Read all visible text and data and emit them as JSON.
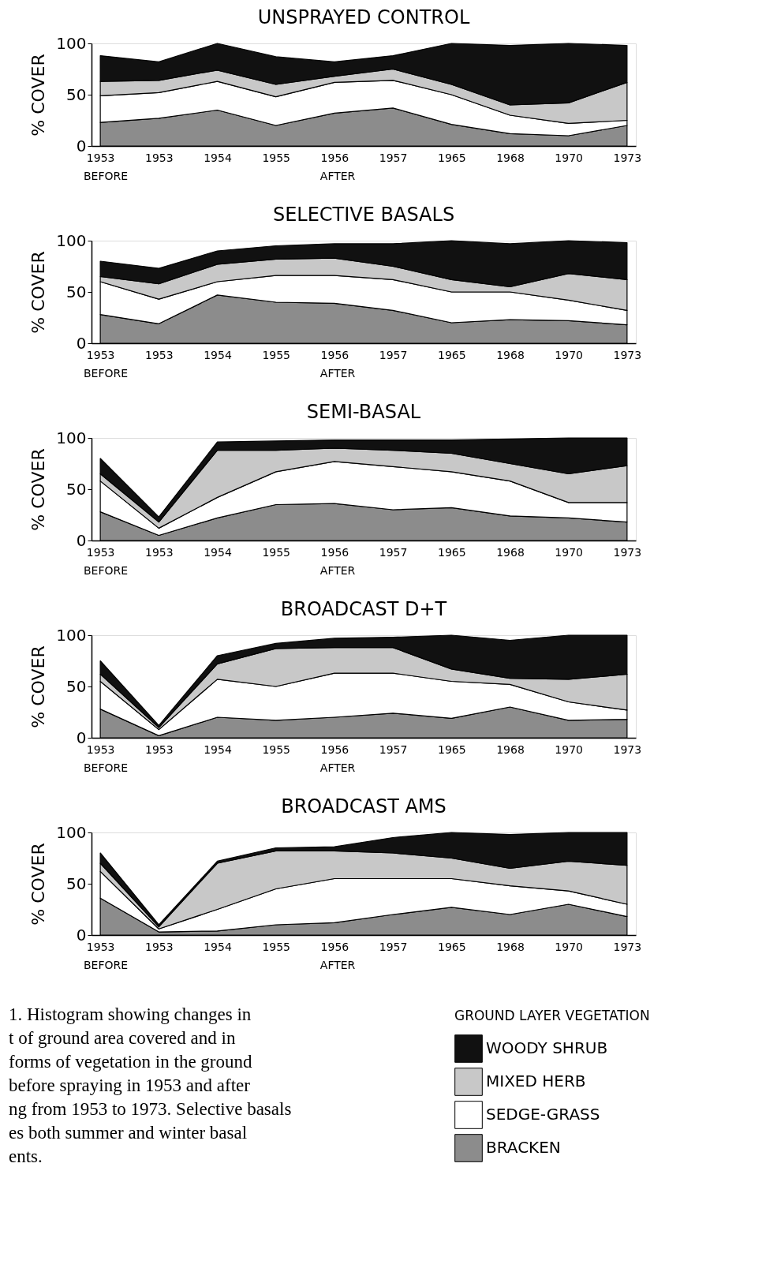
{
  "chart_data": [
    {
      "type": "area",
      "title": "UNSPRAYED CONTROL",
      "ylabel": "% COVER",
      "stacked": true,
      "ylim": [
        0,
        100
      ],
      "yticks": [
        0,
        50,
        100
      ],
      "categories": [
        "1953",
        "1953",
        "1954",
        "1955",
        "1956",
        "1957",
        "1965",
        "1968",
        "1970",
        "1973"
      ],
      "series": [
        {
          "color": "#8c8c8c",
          "values": [
            23,
            27,
            35,
            20,
            32,
            37,
            21,
            12,
            10,
            20
          ]
        },
        {
          "color": "#ffffff",
          "values": [
            26,
            25,
            28,
            28,
            30,
            27,
            29,
            18,
            12,
            5
          ]
        },
        {
          "color": "#c8c8c8",
          "values": [
            14,
            12,
            11,
            12,
            6,
            11,
            10,
            10,
            20,
            37
          ]
        },
        {
          "color": "#111111",
          "values": [
            25,
            18,
            26,
            27,
            14,
            13,
            40,
            58,
            58,
            36
          ]
        }
      ],
      "annotations": [
        "BEFORE",
        "AFTER"
      ]
    },
    {
      "type": "area",
      "title": "SELECTIVE BASALS",
      "ylabel": "% COVER",
      "stacked": true,
      "ylim": [
        0,
        100
      ],
      "yticks": [
        0,
        50,
        100
      ],
      "categories": [
        "1953",
        "1953",
        "1954",
        "1955",
        "1956",
        "1957",
        "1965",
        "1968",
        "1970",
        "1973"
      ],
      "series": [
        {
          "color": "#8c8c8c",
          "values": [
            28,
            19,
            47,
            40,
            39,
            32,
            20,
            23,
            22,
            18
          ]
        },
        {
          "color": "#ffffff",
          "values": [
            32,
            24,
            13,
            26,
            27,
            30,
            30,
            27,
            20,
            14
          ]
        },
        {
          "color": "#c8c8c8",
          "values": [
            5,
            15,
            17,
            16,
            17,
            13,
            12,
            5,
            26,
            30
          ]
        },
        {
          "color": "#111111",
          "values": [
            15,
            15,
            13,
            13,
            14,
            22,
            38,
            42,
            32,
            36
          ]
        }
      ],
      "annotations": [
        "BEFORE",
        "AFTER"
      ]
    },
    {
      "type": "area",
      "title": "SEMI-BASAL",
      "ylabel": "% COVER",
      "stacked": true,
      "ylim": [
        0,
        100
      ],
      "yticks": [
        0,
        50,
        100
      ],
      "categories": [
        "1953",
        "1953",
        "1954",
        "1955",
        "1956",
        "1957",
        "1965",
        "1968",
        "1970",
        "1973"
      ],
      "series": [
        {
          "color": "#8c8c8c",
          "values": [
            28,
            5,
            22,
            35,
            36,
            30,
            32,
            24,
            22,
            18
          ]
        },
        {
          "color": "#ffffff",
          "values": [
            30,
            7,
            20,
            32,
            41,
            42,
            35,
            34,
            15,
            19
          ]
        },
        {
          "color": "#c8c8c8",
          "values": [
            7,
            6,
            46,
            21,
            13,
            16,
            18,
            17,
            28,
            36
          ]
        },
        {
          "color": "#111111",
          "values": [
            15,
            5,
            8,
            9,
            8,
            10,
            13,
            24,
            35,
            27
          ]
        }
      ],
      "annotations": [
        "BEFORE",
        "AFTER"
      ]
    },
    {
      "type": "area",
      "title": "BROADCAST D+T",
      "ylabel": "% COVER",
      "stacked": true,
      "ylim": [
        0,
        100
      ],
      "yticks": [
        0,
        50,
        100
      ],
      "categories": [
        "1953",
        "1953",
        "1954",
        "1955",
        "1956",
        "1957",
        "1965",
        "1968",
        "1970",
        "1973"
      ],
      "series": [
        {
          "color": "#8c8c8c",
          "values": [
            28,
            2,
            20,
            17,
            20,
            24,
            19,
            30,
            17,
            18
          ]
        },
        {
          "color": "#ffffff",
          "values": [
            27,
            6,
            37,
            33,
            43,
            39,
            36,
            22,
            18,
            9
          ]
        },
        {
          "color": "#c8c8c8",
          "values": [
            7,
            2,
            15,
            37,
            25,
            25,
            12,
            6,
            22,
            35
          ]
        },
        {
          "color": "#111111",
          "values": [
            13,
            2,
            8,
            5,
            9,
            10,
            33,
            37,
            43,
            38
          ]
        }
      ],
      "annotations": [
        "BEFORE",
        "AFTER"
      ]
    },
    {
      "type": "area",
      "title": "BROADCAST AMS",
      "ylabel": "% COVER",
      "stacked": true,
      "ylim": [
        0,
        100
      ],
      "yticks": [
        0,
        50,
        100
      ],
      "categories": [
        "1953",
        "1953",
        "1954",
        "1955",
        "1956",
        "1957",
        "1965",
        "1968",
        "1970",
        "1973"
      ],
      "series": [
        {
          "name": "BRACKEN",
          "color": "#8c8c8c",
          "values": [
            36,
            3,
            4,
            10,
            12,
            20,
            27,
            20,
            30,
            18
          ]
        },
        {
          "name": "SEDGE-GRASS",
          "color": "#ffffff",
          "values": [
            26,
            3,
            21,
            35,
            43,
            35,
            28,
            28,
            13,
            12
          ]
        },
        {
          "name": "MIXED HERB",
          "color": "#c8c8c8",
          "values": [
            8,
            2,
            45,
            37,
            27,
            25,
            20,
            17,
            29,
            38
          ]
        },
        {
          "name": "WOODY SHRUB",
          "color": "#111111",
          "values": [
            10,
            2,
            2,
            3,
            4,
            15,
            25,
            33,
            28,
            32
          ]
        }
      ],
      "legend": "bottom right",
      "legend_title": "GROUND LAYER VEGETATION",
      "annotations": [
        "BEFORE",
        "AFTER",
        "1. Histogram showing changes in",
        "t of ground area covered and in",
        "forms of vegetation in the ground",
        "before spraying in 1953 and after",
        "ng from 1953 to 1973. Selective basals",
        "es both summer and winter basal",
        "ents."
      ]
    }
  ]
}
